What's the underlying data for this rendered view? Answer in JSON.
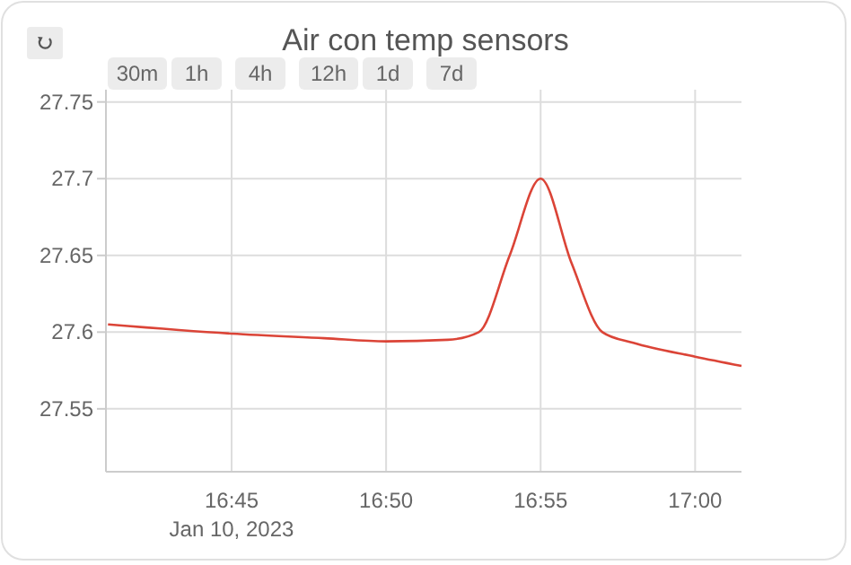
{
  "chart_data": {
    "type": "line",
    "title": "Air con temp sensors",
    "x": [
      "2023-01-10T16:41",
      "2023-01-10T16:45",
      "2023-01-10T16:48",
      "2023-01-10T16:50",
      "2023-01-10T16:52",
      "2023-01-10T16:53",
      "2023-01-10T16:54",
      "2023-01-10T16:55",
      "2023-01-10T16:56",
      "2023-01-10T16:57",
      "2023-01-10T16:58",
      "2023-01-10T17:00",
      "2023-01-10T17:01:30"
    ],
    "series": [
      {
        "color": "#db4437",
        "values": [
          27.605,
          27.599,
          27.596,
          27.594,
          27.595,
          27.6,
          27.65,
          27.7,
          27.645,
          27.6,
          27.593,
          27.584,
          27.578
        ]
      }
    ],
    "xlim": [
      "2023-01-10T16:40:56",
      "2023-01-10T17:01:30"
    ],
    "xticks": [
      {
        "value": "2023-01-10T16:45",
        "label": "16:45"
      },
      {
        "value": "2023-01-10T16:50",
        "label": "16:50"
      },
      {
        "value": "2023-01-10T16:55",
        "label": "16:55"
      },
      {
        "value": "2023-01-10T17:00",
        "label": "17:00"
      }
    ],
    "ylim": [
      27.509,
      27.758
    ],
    "yticks": [
      27.55,
      {
        "value": 27.6,
        "label": "27.6"
      },
      27.65,
      {
        "value": 27.7,
        "label": "27.7"
      },
      27.75
    ],
    "grid": true,
    "marker": "none",
    "line_style": "solid",
    "annotations": [
      "Jan 10, 2023",
      "30m",
      "1h",
      "4h",
      "12h",
      "1d",
      "7d"
    ]
  }
}
